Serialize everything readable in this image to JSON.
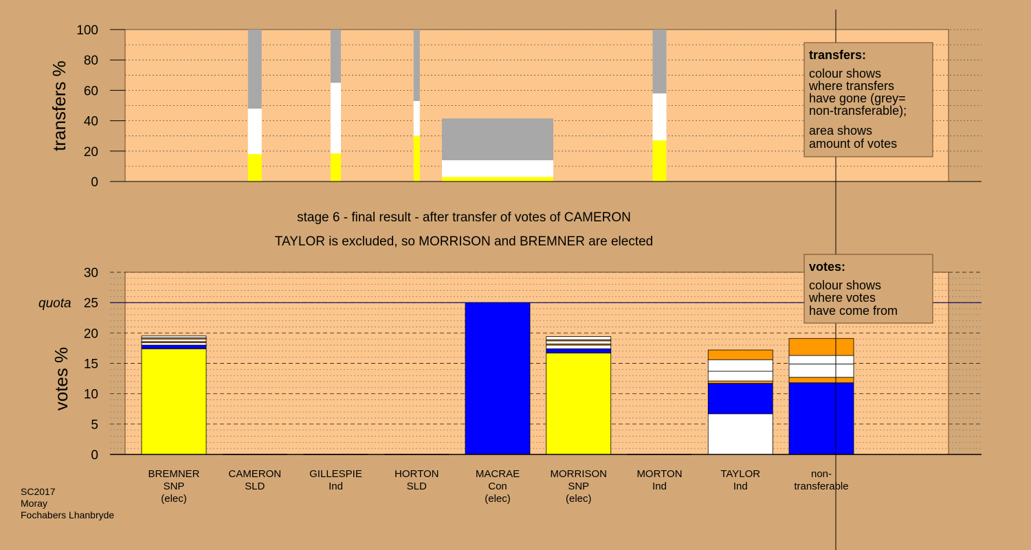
{
  "colors": {
    "background": "#d3a876",
    "plot_fill": "#fdc68c",
    "grey": "#a8a8a8",
    "white": "#ffffff",
    "yellow": "#ffff00",
    "blue": "#0000ff",
    "orange": "#ff9900",
    "quota_line": "#000060"
  },
  "heading": {
    "line1": "stage 6 - final result - after transfer of votes of CAMERON",
    "line2": "TAYLOR is excluded, so MORRISON and BREMNER are elected"
  },
  "footer": [
    "SC2017",
    "Moray",
    "Fochabers Lhanbryde"
  ],
  "candidates": [
    {
      "name": "BREMNER",
      "party": "SNP",
      "status": "(elec)"
    },
    {
      "name": "CAMERON",
      "party": "SLD",
      "status": ""
    },
    {
      "name": "GILLESPIE",
      "party": "Ind",
      "status": ""
    },
    {
      "name": "HORTON",
      "party": "SLD",
      "status": ""
    },
    {
      "name": "MACRAE",
      "party": "Con",
      "status": "(elec)"
    },
    {
      "name": "MORRISON",
      "party": "SNP",
      "status": "(elec)"
    },
    {
      "name": "MORTON",
      "party": "Ind",
      "status": ""
    },
    {
      "name": "TAYLOR",
      "party": "Ind",
      "status": ""
    },
    {
      "name": "non-",
      "party": "transferable",
      "status": ""
    }
  ],
  "legend_transfers": {
    "title": "transfers:",
    "lines": [
      "colour shows",
      "where transfers",
      "have gone (grey=",
      "non-transferable);",
      "area shows",
      "amount of votes"
    ]
  },
  "legend_votes": {
    "title": "votes:",
    "lines": [
      "colour shows",
      "where votes",
      "have come from"
    ]
  },
  "chart_data": [
    {
      "type": "bar",
      "ylabel": "transfers %",
      "ylim": [
        0,
        100
      ],
      "yticks": [
        0,
        20,
        40,
        60,
        80,
        100
      ],
      "grid": "dotted",
      "note": "stacked transfer bars; bar width reflects amount of votes transferred",
      "bars": [
        {
          "column": 1,
          "segments": [
            {
              "color": "yellow",
              "value": 18
            },
            {
              "color": "white",
              "value": 30
            },
            {
              "color": "grey",
              "value": 52
            }
          ]
        },
        {
          "column": 2,
          "segments": [
            {
              "color": "yellow",
              "value": 18.5
            },
            {
              "color": "white",
              "value": 46.5
            },
            {
              "color": "grey",
              "value": 35
            }
          ]
        },
        {
          "column": 3,
          "segments": [
            {
              "color": "yellow",
              "value": 30
            },
            {
              "color": "white",
              "value": 23
            },
            {
              "color": "grey",
              "value": 47
            }
          ]
        },
        {
          "column": 4,
          "segments": [
            {
              "color": "yellow",
              "value": 3
            },
            {
              "color": "white",
              "value": 11
            },
            {
              "color": "grey",
              "value": 27.5
            }
          ]
        },
        {
          "column": 6,
          "segments": [
            {
              "color": "yellow",
              "value": 27
            },
            {
              "color": "white",
              "value": 31
            },
            {
              "color": "grey",
              "value": 42
            }
          ]
        }
      ]
    },
    {
      "type": "bar",
      "ylabel": "votes %",
      "ylim": [
        0,
        30
      ],
      "yticks": [
        0,
        5,
        10,
        15,
        20,
        25,
        30
      ],
      "quota": 25,
      "quota_label": "quota",
      "grid": "dashed",
      "categories": [
        "BREMNER",
        "CAMERON",
        "GILLESPIE",
        "HORTON",
        "MACRAE",
        "MORRISON",
        "MORTON",
        "TAYLOR",
        "non-transferable"
      ],
      "bars": [
        {
          "category": "BREMNER",
          "segments": [
            {
              "color": "yellow",
              "value": 17.4
            },
            {
              "color": "blue",
              "value": 0.6
            },
            {
              "color": "white",
              "value": 0.4
            },
            {
              "color": "orange",
              "value": 0.2
            },
            {
              "color": "white",
              "value": 0.4
            },
            {
              "color": "orange",
              "value": 0.2
            },
            {
              "color": "white",
              "value": 0.3
            }
          ]
        },
        {
          "category": "CAMERON",
          "segments": []
        },
        {
          "category": "GILLESPIE",
          "segments": []
        },
        {
          "category": "HORTON",
          "segments": []
        },
        {
          "category": "MACRAE",
          "segments": [
            {
              "color": "blue",
              "value": 25
            }
          ]
        },
        {
          "category": "MORRISON",
          "segments": [
            {
              "color": "yellow",
              "value": 16.7
            },
            {
              "color": "blue",
              "value": 0.7
            },
            {
              "color": "white",
              "value": 0.6
            },
            {
              "color": "orange",
              "value": 0.2
            },
            {
              "color": "white",
              "value": 0.5
            },
            {
              "color": "orange",
              "value": 0.2
            },
            {
              "color": "white",
              "value": 0.5
            }
          ]
        },
        {
          "category": "MORTON",
          "segments": []
        },
        {
          "category": "TAYLOR",
          "segments": [
            {
              "color": "white",
              "value": 6.7
            },
            {
              "color": "blue",
              "value": 5
            },
            {
              "color": "orange",
              "value": 0.4
            },
            {
              "color": "white",
              "value": 1.6
            },
            {
              "color": "white",
              "value": 1.9
            },
            {
              "color": "orange",
              "value": 1.6
            }
          ]
        },
        {
          "category": "non-transferable",
          "segments": [
            {
              "color": "blue",
              "value": 11.8
            },
            {
              "color": "orange",
              "value": 0.9
            },
            {
              "color": "white",
              "value": 2.2
            },
            {
              "color": "white",
              "value": 1.4
            },
            {
              "color": "orange",
              "value": 2.8
            }
          ]
        }
      ]
    }
  ]
}
